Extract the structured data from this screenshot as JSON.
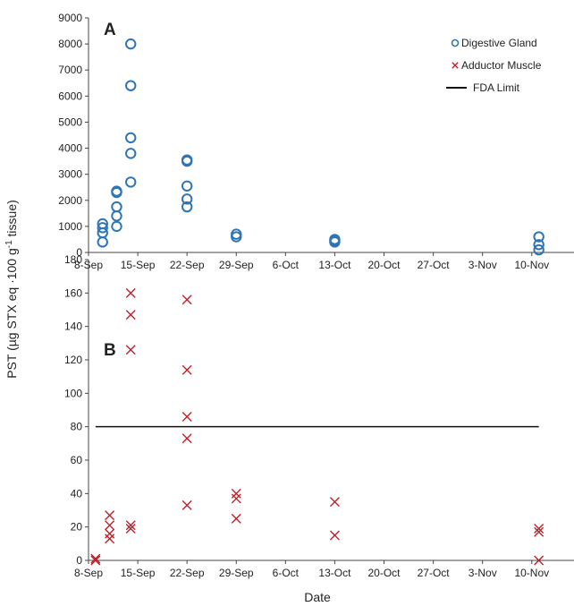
{
  "figure": {
    "ylabel_text": "PST (µg STX eq ·100 g",
    "ylabel_sup": "-1",
    "ylabel_tail": " tissue)",
    "xlabel": "Date"
  },
  "chart_data": [
    {
      "type": "scatter",
      "panel": "A",
      "x_tick_labels": [
        "8-Sep",
        "15-Sep",
        "22-Sep",
        "29-Sep",
        "6-Oct",
        "13-Oct",
        "20-Oct",
        "27-Oct",
        "3-Nov",
        "10-Nov"
      ],
      "x_ticks_day_of_year": [
        251,
        258,
        265,
        272,
        279,
        286,
        293,
        300,
        307,
        314
      ],
      "ylim": [
        0,
        9000
      ],
      "y_ticks": [
        0,
        1000,
        2000,
        3000,
        4000,
        5000,
        6000,
        7000,
        8000,
        9000
      ],
      "grid": false,
      "legend_position": "top-right",
      "legend": [
        {
          "label": "Digestive Gland",
          "marker": "circle",
          "color": "#2e75b6"
        },
        {
          "label": "Adductor Muscle",
          "marker": "x",
          "color": "#c0202a"
        },
        {
          "label": "FDA Limit",
          "marker": "line",
          "color": "#111111"
        }
      ],
      "series": [
        {
          "name": "Digestive Gland",
          "marker": "circle",
          "color": "#2e75b6",
          "points": [
            {
              "x": "10-Sep",
              "y": 400
            },
            {
              "x": "10-Sep",
              "y": 750
            },
            {
              "x": "10-Sep",
              "y": 950
            },
            {
              "x": "10-Sep",
              "y": 1100
            },
            {
              "x": "12-Sep",
              "y": 1000
            },
            {
              "x": "12-Sep",
              "y": 1400
            },
            {
              "x": "12-Sep",
              "y": 1750
            },
            {
              "x": "12-Sep",
              "y": 2300
            },
            {
              "x": "12-Sep",
              "y": 2350
            },
            {
              "x": "14-Sep",
              "y": 2700
            },
            {
              "x": "14-Sep",
              "y": 3800
            },
            {
              "x": "14-Sep",
              "y": 4400
            },
            {
              "x": "14-Sep",
              "y": 6400
            },
            {
              "x": "14-Sep",
              "y": 8000
            },
            {
              "x": "22-Sep",
              "y": 1750
            },
            {
              "x": "22-Sep",
              "y": 2050
            },
            {
              "x": "22-Sep",
              "y": 2550
            },
            {
              "x": "22-Sep",
              "y": 3500
            },
            {
              "x": "22-Sep",
              "y": 3550
            },
            {
              "x": "29-Sep",
              "y": 600
            },
            {
              "x": "29-Sep",
              "y": 700
            },
            {
              "x": "13-Oct",
              "y": 400
            },
            {
              "x": "13-Oct",
              "y": 450
            },
            {
              "x": "13-Oct",
              "y": 500
            },
            {
              "x": "11-Nov",
              "y": 100
            },
            {
              "x": "11-Nov",
              "y": 300
            },
            {
              "x": "11-Nov",
              "y": 600
            }
          ]
        }
      ]
    },
    {
      "type": "scatter",
      "panel": "B",
      "x_tick_labels": [
        "8-Sep",
        "15-Sep",
        "22-Sep",
        "29-Sep",
        "6-Oct",
        "13-Oct",
        "20-Oct",
        "27-Oct",
        "3-Nov",
        "10-Nov"
      ],
      "x_ticks_day_of_year": [
        251,
        258,
        265,
        272,
        279,
        286,
        293,
        300,
        307,
        314
      ],
      "ylim": [
        0,
        180
      ],
      "y_ticks": [
        0,
        20,
        40,
        60,
        80,
        100,
        120,
        140,
        160,
        180
      ],
      "grid": false,
      "series": [
        {
          "name": "Adductor Muscle",
          "marker": "x",
          "color": "#c0202a",
          "points": [
            {
              "x": "9-Sep",
              "y": 0
            },
            {
              "x": "9-Sep",
              "y": 1
            },
            {
              "x": "11-Sep",
              "y": 13
            },
            {
              "x": "11-Sep",
              "y": 16
            },
            {
              "x": "11-Sep",
              "y": 21
            },
            {
              "x": "11-Sep",
              "y": 27
            },
            {
              "x": "14-Sep",
              "y": 19
            },
            {
              "x": "14-Sep",
              "y": 21
            },
            {
              "x": "14-Sep",
              "y": 126
            },
            {
              "x": "14-Sep",
              "y": 147
            },
            {
              "x": "14-Sep",
              "y": 160
            },
            {
              "x": "22-Sep",
              "y": 33
            },
            {
              "x": "22-Sep",
              "y": 73
            },
            {
              "x": "22-Sep",
              "y": 86
            },
            {
              "x": "22-Sep",
              "y": 114
            },
            {
              "x": "22-Sep",
              "y": 156
            },
            {
              "x": "29-Sep",
              "y": 25
            },
            {
              "x": "29-Sep",
              "y": 37
            },
            {
              "x": "29-Sep",
              "y": 40
            },
            {
              "x": "13-Oct",
              "y": 15
            },
            {
              "x": "13-Oct",
              "y": 35
            },
            {
              "x": "11-Nov",
              "y": 0
            },
            {
              "x": "11-Nov",
              "y": 17
            },
            {
              "x": "11-Nov",
              "y": 19
            }
          ]
        },
        {
          "name": "FDA Limit",
          "marker": "line",
          "color": "#111111",
          "y": 80,
          "x_range": [
            "9-Sep",
            "11-Nov"
          ]
        }
      ]
    }
  ]
}
